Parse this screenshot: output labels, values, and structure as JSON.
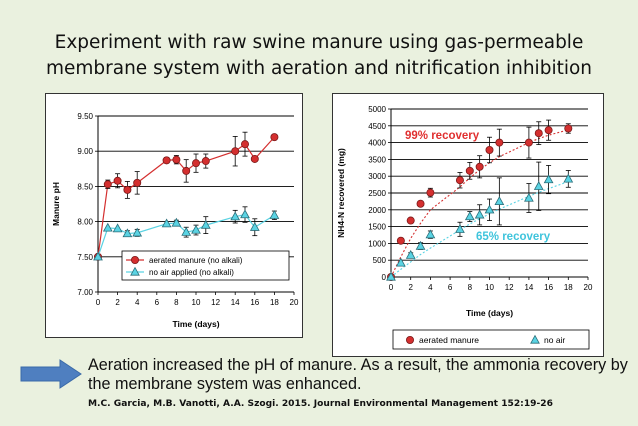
{
  "title": {
    "line1": "Experiment with raw swine manure using gas-permeable",
    "line2": "membrane system with aeration and nitrification inhibition"
  },
  "colors": {
    "background": "#eaf1df",
    "aerated": "#d42f2f",
    "no_air": "#5ad3e3",
    "arrow": "#4f7fc0",
    "recovery_red": "#e03030",
    "recovery_cyan": "#3fc4dc"
  },
  "icons": {
    "arrow": "right-arrow-icon"
  },
  "conclusion": "Aeration increased the pH of manure.  As a result, the ammonia recovery by the membrane system was enhanced.",
  "citation": "M.C. Garcia, M.B. Vanotti, A.A. Szogi.  2015. Journal Environmental Management 152:19-26",
  "chart_data": [
    {
      "type": "scatter",
      "xlabel": "Time (days)",
      "ylabel": "Manure pH",
      "xlim": [
        0,
        20
      ],
      "ylim": [
        7.0,
        9.5
      ],
      "xticks": [
        "0",
        "2",
        "4",
        "6",
        "8",
        "10",
        "12",
        "14",
        "16",
        "18",
        "20"
      ],
      "yticks": [
        "7.00",
        "7.50",
        "8.00",
        "8.50",
        "9.00",
        "9.50"
      ],
      "grid": "horizontal",
      "legend_position": "bottom-right",
      "series": [
        {
          "name": "aerated manure (no alkali)",
          "color": "#d42f2f",
          "marker": "circle",
          "trend": "line",
          "x": [
            0,
            1,
            2,
            3,
            4,
            7,
            8,
            9,
            10,
            11,
            14,
            15,
            16,
            18
          ],
          "y": [
            7.5,
            8.53,
            8.58,
            8.45,
            8.55,
            8.87,
            8.88,
            8.72,
            8.83,
            8.86,
            9.0,
            9.1,
            8.89,
            9.2
          ],
          "err": [
            0,
            0.06,
            0.1,
            0.12,
            0.16,
            0.04,
            0.06,
            0.16,
            0.13,
            0.1,
            0.21,
            0.17,
            0,
            0
          ]
        },
        {
          "name": "no air applied (no alkali)",
          "color": "#5ad3e3",
          "marker": "triangle",
          "trend": "line",
          "x": [
            0,
            1,
            2,
            3,
            4,
            7,
            8,
            9,
            10,
            11,
            14,
            15,
            16,
            18
          ],
          "y": [
            7.5,
            7.91,
            7.9,
            7.83,
            7.84,
            7.97,
            7.98,
            7.85,
            7.88,
            7.95,
            8.07,
            8.1,
            7.92,
            8.09
          ],
          "err": [
            0,
            0,
            0,
            0.04,
            0.05,
            0,
            0.04,
            0.07,
            0.07,
            0.12,
            0.09,
            0.11,
            0.12,
            0.06
          ]
        }
      ]
    },
    {
      "type": "scatter",
      "xlabel": "Time (days)",
      "ylabel": "NH4-N recovered (mg)",
      "xlim": [
        0,
        20
      ],
      "ylim": [
        0,
        5000
      ],
      "xticks": [
        "0",
        "2",
        "4",
        "6",
        "8",
        "10",
        "12",
        "14",
        "16",
        "18",
        "20"
      ],
      "yticks": [
        "0",
        "500",
        "1000",
        "1500",
        "2000",
        "2500",
        "3000",
        "3500",
        "4000",
        "4500",
        "5000"
      ],
      "grid": "horizontal",
      "legend_position": "bottom",
      "annotations": [
        {
          "text": "99% recovery",
          "color": "#e03030"
        },
        {
          "text": "65% recovery",
          "color": "#3fc4dc"
        }
      ],
      "series": [
        {
          "name": "aerated manure",
          "color": "#d42f2f",
          "marker": "circle",
          "trend": "curve",
          "x": [
            0,
            1,
            2,
            3,
            4,
            7,
            8,
            9,
            10,
            11,
            14,
            15,
            16,
            18
          ],
          "y": [
            0,
            1080,
            1680,
            2180,
            2510,
            2880,
            3160,
            3280,
            3780,
            4000,
            4000,
            4280,
            4370,
            4420
          ],
          "err": [
            0,
            0,
            0,
            0,
            130,
            230,
            250,
            330,
            380,
            400,
            460,
            340,
            300,
            140
          ],
          "trend_y": [
            0,
            600,
            1150,
            1600,
            2000,
            2680,
            2950,
            3190,
            3400,
            3580,
            4000,
            4120,
            4220,
            4380
          ]
        },
        {
          "name": "no air",
          "color": "#5ad3e3",
          "marker": "triangle",
          "trend": "curve",
          "x": [
            0,
            1,
            2,
            3,
            4,
            7,
            8,
            9,
            10,
            11,
            14,
            15,
            16,
            18
          ],
          "y": [
            0,
            420,
            650,
            920,
            1260,
            1420,
            1800,
            1850,
            2000,
            2250,
            2350,
            2700,
            2900,
            2920
          ],
          "err": [
            0,
            0,
            70,
            100,
            110,
            210,
            150,
            300,
            320,
            700,
            430,
            720,
            420,
            250
          ],
          "trend_y": [
            0,
            230,
            450,
            670,
            860,
            1400,
            1580,
            1730,
            1880,
            2020,
            2400,
            2520,
            2630,
            2840
          ]
        }
      ]
    }
  ]
}
